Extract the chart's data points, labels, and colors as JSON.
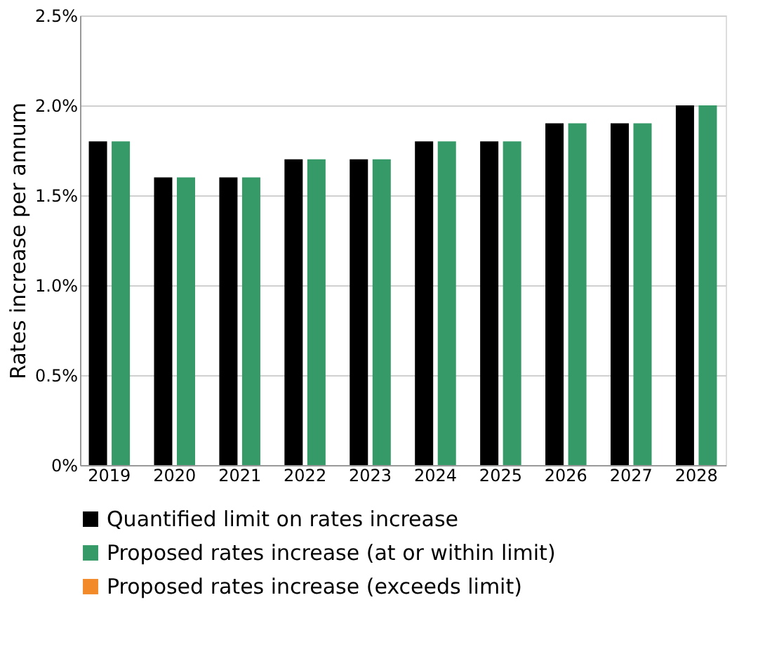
{
  "chart_data": {
    "type": "bar",
    "ylabel": "Rates increase per annum",
    "categories": [
      "2019",
      "2020",
      "2021",
      "2022",
      "2023",
      "2024",
      "2025",
      "2026",
      "2027",
      "2028"
    ],
    "series": [
      {
        "name": "Quantified limit on rates increase",
        "color": "#000000",
        "values": [
          1.8,
          1.6,
          1.6,
          1.7,
          1.7,
          1.8,
          1.8,
          1.9,
          1.9,
          2.0
        ]
      },
      {
        "name": "Proposed rates increase (at or within limit)",
        "color": "#359a67",
        "values": [
          1.8,
          1.6,
          1.6,
          1.7,
          1.7,
          1.8,
          1.8,
          1.9,
          1.9,
          2.0
        ]
      },
      {
        "name": "Proposed rates increase (exceeds limit)",
        "color": "#f28a2a",
        "values": [
          null,
          null,
          null,
          null,
          null,
          null,
          null,
          null,
          null,
          null
        ]
      }
    ],
    "ylim": [
      0,
      2.5
    ],
    "yticks": [
      {
        "value": 0,
        "label": "0%"
      },
      {
        "value": 0.5,
        "label": "0.5%"
      },
      {
        "value": 1.0,
        "label": "1.0%"
      },
      {
        "value": 1.5,
        "label": "1.5%"
      },
      {
        "value": 2.0,
        "label": "2.0%"
      },
      {
        "value": 2.5,
        "label": "2.5%"
      }
    ],
    "grid": "y",
    "legend": "bottom"
  }
}
